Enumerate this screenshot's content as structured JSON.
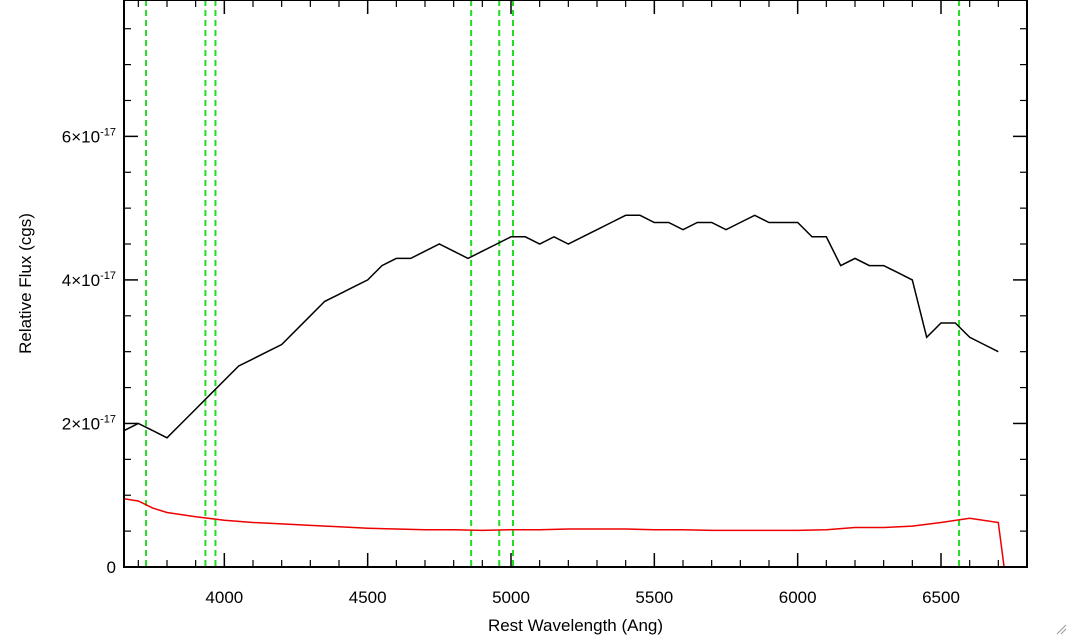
{
  "chart_data": {
    "type": "line",
    "xlabel": "Rest Wavelength (Ang)",
    "ylabel": "Relative Flux (cgs)",
    "xlim": [
      3650,
      6800
    ],
    "ylim": [
      0,
      7.9e-17
    ],
    "grid": false,
    "legend": "none",
    "x_ticks": [
      {
        "value": 4000,
        "label": "4000"
      },
      {
        "value": 4500,
        "label": "4500"
      },
      {
        "value": 5000,
        "label": "5000"
      },
      {
        "value": 5500,
        "label": "5500"
      },
      {
        "value": 6000,
        "label": "6000"
      },
      {
        "value": 6500,
        "label": "6500"
      }
    ],
    "y_ticks": [
      {
        "value": 0,
        "label": "0",
        "exp": ""
      },
      {
        "value": 2e-17,
        "label": "2×10",
        "exp": "-17"
      },
      {
        "value": 4e-17,
        "label": "4×10",
        "exp": "-17"
      },
      {
        "value": 6e-17,
        "label": "6×10",
        "exp": "-17"
      }
    ],
    "vlines": {
      "color": "#22dd22",
      "style": "dashed",
      "x": [
        3727,
        3934,
        3969,
        4861,
        4959,
        5007,
        6563
      ]
    },
    "series": [
      {
        "color": "#000000",
        "x": [
          3650,
          3700,
          3750,
          3800,
          3850,
          3900,
          3950,
          4000,
          4050,
          4100,
          4150,
          4200,
          4250,
          4300,
          4350,
          4400,
          4450,
          4500,
          4550,
          4600,
          4650,
          4700,
          4750,
          4800,
          4850,
          4900,
          4950,
          5000,
          5050,
          5100,
          5150,
          5200,
          5250,
          5300,
          5350,
          5400,
          5450,
          5500,
          5550,
          5600,
          5650,
          5700,
          5750,
          5800,
          5850,
          5900,
          5950,
          6000,
          6050,
          6100,
          6150,
          6200,
          6250,
          6300,
          6350,
          6400,
          6450,
          6500,
          6550,
          6600,
          6650,
          6700
        ],
        "y": [
          1.9e-17,
          2e-17,
          1.9e-17,
          1.8e-17,
          2e-17,
          2.2e-17,
          2.4e-17,
          2.6e-17,
          2.8e-17,
          2.9e-17,
          3e-17,
          3.1e-17,
          3.3e-17,
          3.5e-17,
          3.7e-17,
          3.8e-17,
          3.9e-17,
          4e-17,
          4.2e-17,
          4.3e-17,
          4.3e-17,
          4.4e-17,
          4.5e-17,
          4.4e-17,
          4.3e-17,
          4.4e-17,
          4.5e-17,
          4.6e-17,
          4.6e-17,
          4.5e-17,
          4.6e-17,
          4.5e-17,
          4.6e-17,
          4.7e-17,
          4.8e-17,
          4.9e-17,
          4.9e-17,
          4.8e-17,
          4.8e-17,
          4.7e-17,
          4.8e-17,
          4.8e-17,
          4.7e-17,
          4.8e-17,
          4.9e-17,
          4.8e-17,
          4.8e-17,
          4.8e-17,
          4.6e-17,
          4.6e-17,
          4.2e-17,
          4.3e-17,
          4.2e-17,
          4.2e-17,
          4.1e-17,
          4e-17,
          3.2e-17,
          3.4e-17,
          3.4e-17,
          3.2e-17,
          3.1e-17,
          3e-17
        ]
      },
      {
        "color": "#ee0000",
        "x": [
          3650,
          3700,
          3750,
          3800,
          3900,
          4000,
          4100,
          4200,
          4300,
          4400,
          4500,
          4600,
          4700,
          4800,
          4900,
          5000,
          5100,
          5200,
          5300,
          5400,
          5500,
          5600,
          5700,
          5800,
          5900,
          6000,
          6100,
          6200,
          6300,
          6400,
          6500,
          6600,
          6700,
          6720,
          6800
        ],
        "y": [
          9.5e-18,
          9.2e-18,
          8.2e-18,
          7.6e-18,
          7e-18,
          6.5e-18,
          6.2e-18,
          6e-18,
          5.8e-18,
          5.6e-18,
          5.4e-18,
          5.3e-18,
          5.2e-18,
          5.2e-18,
          5.1e-18,
          5.2e-18,
          5.2e-18,
          5.3e-18,
          5.3e-18,
          5.3e-18,
          5.2e-18,
          5.2e-18,
          5.1e-18,
          5.1e-18,
          5.1e-18,
          5.1e-18,
          5.2e-18,
          5.5e-18,
          5.5e-18,
          5.7e-18,
          6.2e-18,
          6.8e-18,
          6.2e-18,
          0.0,
          0.0
        ]
      }
    ]
  }
}
